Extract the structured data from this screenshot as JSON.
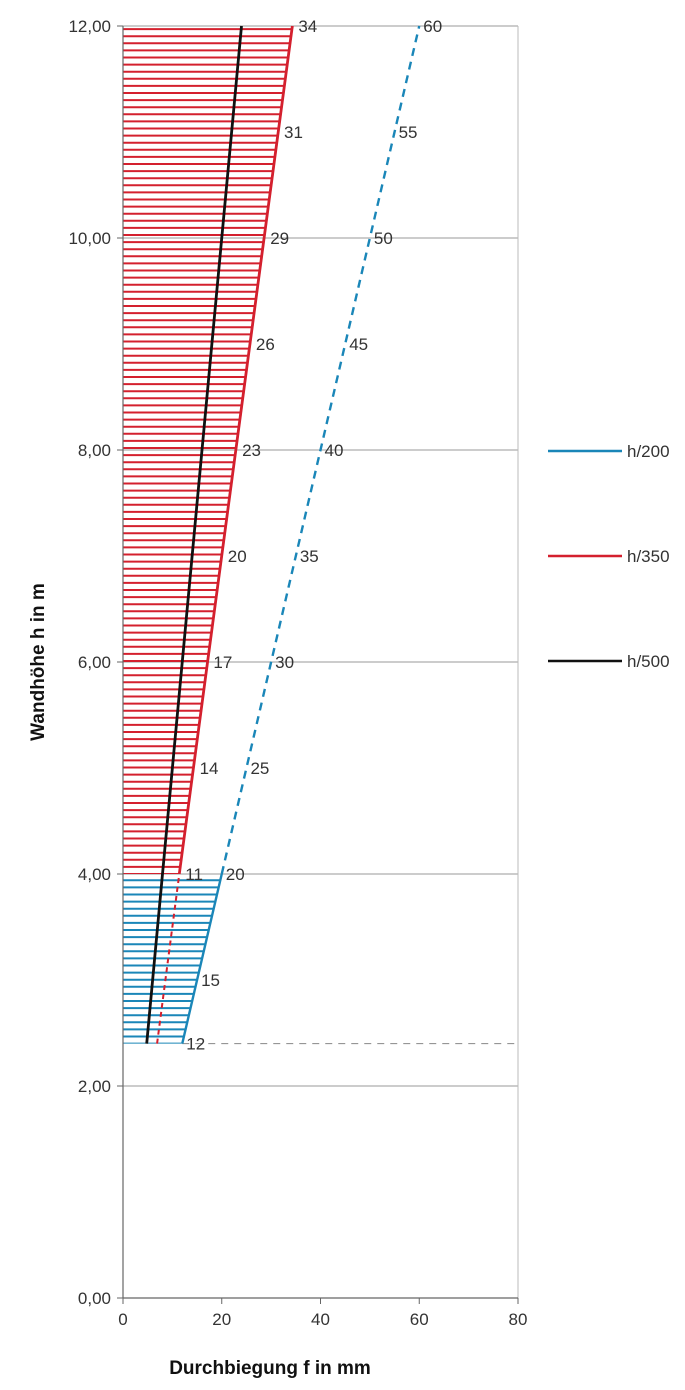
{
  "chart_data": {
    "type": "line",
    "xlabel": "Durchbiegung f in mm",
    "ylabel": "Wandhöhe h in m",
    "xlim": [
      0,
      80
    ],
    "ylim": [
      0,
      12
    ],
    "x_ticks": [
      "0",
      "20",
      "40",
      "60",
      "80"
    ],
    "y_ticks": [
      "0,00",
      "2,00",
      "4,00",
      "6,00",
      "8,00",
      "10,00",
      "12,00"
    ],
    "grid": "horizontal",
    "legend_position": "right",
    "colors": {
      "h200": "#1a86b8",
      "h350": "#d4202e",
      "h500": "#111111"
    },
    "series": [
      {
        "name": "h/200",
        "color": "#1a86b8",
        "points": [
          [
            12,
            2.4
          ],
          [
            20,
            4
          ],
          [
            60,
            12
          ]
        ],
        "solid_until_height": 4
      },
      {
        "name": "h/350",
        "color": "#d4202e",
        "points": [
          [
            6.9,
            2.4
          ],
          [
            11.4,
            4
          ],
          [
            34.3,
            12
          ]
        ],
        "solid_from_height": 4
      },
      {
        "name": "h/500",
        "color": "#111111",
        "points": [
          [
            4.8,
            2.4
          ],
          [
            24,
            12
          ]
        ]
      }
    ],
    "reference_line_height": 2.4,
    "annotations_h200": [
      {
        "label": "12",
        "x": 12,
        "y": 2.4
      },
      {
        "label": "15",
        "x": 15,
        "y": 3
      },
      {
        "label": "20",
        "x": 20,
        "y": 4
      },
      {
        "label": "25",
        "x": 25,
        "y": 5
      },
      {
        "label": "30",
        "x": 30,
        "y": 6
      },
      {
        "label": "35",
        "x": 35,
        "y": 7
      },
      {
        "label": "40",
        "x": 40,
        "y": 8
      },
      {
        "label": "45",
        "x": 45,
        "y": 9
      },
      {
        "label": "50",
        "x": 50,
        "y": 10
      },
      {
        "label": "55",
        "x": 55,
        "y": 11
      },
      {
        "label": "60",
        "x": 60,
        "y": 12
      }
    ],
    "annotations_h350": [
      {
        "label": "11",
        "x": 11.4,
        "y": 4
      },
      {
        "label": "14",
        "x": 14.3,
        "y": 5
      },
      {
        "label": "17",
        "x": 17.1,
        "y": 6
      },
      {
        "label": "20",
        "x": 20,
        "y": 7
      },
      {
        "label": "23",
        "x": 22.9,
        "y": 8
      },
      {
        "label": "26",
        "x": 25.7,
        "y": 9
      },
      {
        "label": "29",
        "x": 28.6,
        "y": 10
      },
      {
        "label": "31",
        "x": 31.4,
        "y": 11
      },
      {
        "label": "34",
        "x": 34.3,
        "y": 12
      }
    ]
  }
}
